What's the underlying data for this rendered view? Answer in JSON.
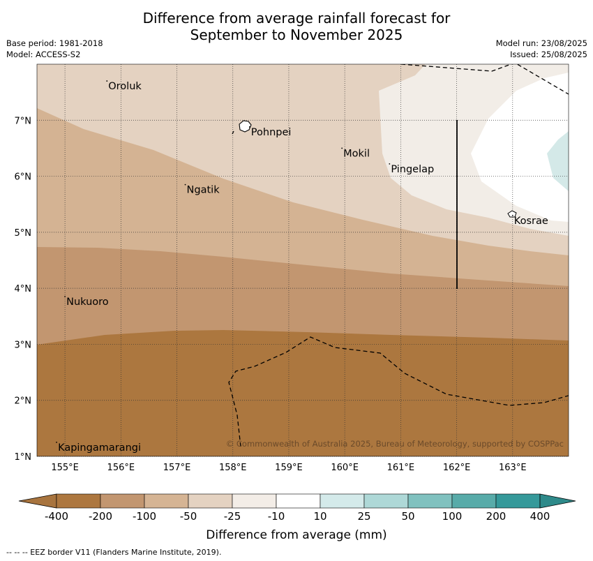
{
  "title": {
    "line1": "Difference from average rainfall forecast for",
    "line2": "September to November 2025"
  },
  "meta": {
    "base_period": "Base period: 1981-2018",
    "model": "Model: ACCESS-S2",
    "model_run": "Model run: 23/08/2025",
    "issued": "Issued: 25/08/2025"
  },
  "map": {
    "lon_range": [
      154.5,
      164.0
    ],
    "lat_range": [
      1.0,
      8.0
    ],
    "lon_ticks": [
      "155°E",
      "156°E",
      "157°E",
      "158°E",
      "159°E",
      "160°E",
      "161°E",
      "162°E",
      "163°E"
    ],
    "lat_ticks": [
      "7°N",
      "6°N",
      "5°N",
      "4°N",
      "3°N",
      "2°N",
      "1°N"
    ],
    "places": [
      {
        "name": "Oroluk",
        "lon": 155.75,
        "lat": 7.7
      },
      {
        "name": "Pohnpei",
        "lon": 158.3,
        "lat": 6.88
      },
      {
        "name": "Mokil",
        "lon": 159.95,
        "lat": 6.5
      },
      {
        "name": "Pingelap",
        "lon": 160.8,
        "lat": 6.22
      },
      {
        "name": "Ngatik",
        "lon": 157.15,
        "lat": 5.85
      },
      {
        "name": "Kosrae",
        "lon": 163.0,
        "lat": 5.3
      },
      {
        "name": "Nukuoro",
        "lon": 155.0,
        "lat": 3.85
      },
      {
        "name": "Kapingamarangi",
        "lon": 154.85,
        "lat": 1.25
      }
    ],
    "copyright": "© Commonwealth of Australia 2025, Bureau of Meteorology, supported by COSPPac",
    "grid": true,
    "eez_border_style": "dashed"
  },
  "colorbar": {
    "labels": [
      "-400",
      "-200",
      "-100",
      "-50",
      "-25",
      "-10",
      "10",
      "25",
      "50",
      "100",
      "200",
      "400"
    ],
    "colors": [
      "#a8743e",
      "#ad773f",
      "#c29670",
      "#d5b494",
      "#e4d2c1",
      "#f3ede7",
      "#ffffff",
      "#d4eaea",
      "#aed8d7",
      "#80c1bf",
      "#58aba9",
      "#35999a",
      "#2e8a8a"
    ],
    "title": "Difference from average (mm)"
  },
  "footnote": "--  --  -- EEZ border V11 (Flanders Marine Institute, 2019)."
}
